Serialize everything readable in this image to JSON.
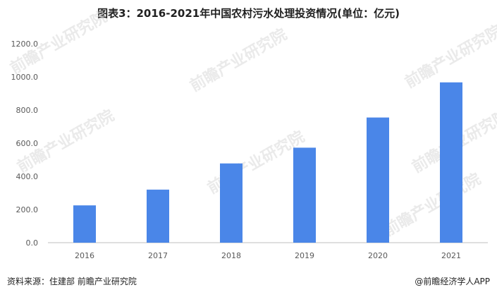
{
  "title": "图表3：2016-2021年中国农村污水处理投资情况(单位：亿元)",
  "source": "资料来源：住建部 前瞻产业研究院",
  "brand": "@前瞻经济学人APP",
  "watermark": "前瞻产业研究院",
  "colors": {
    "bar": "#4a86e8",
    "axis": "#bfbfbf",
    "tick": "#595959"
  },
  "chart_data": {
    "type": "bar",
    "categories": [
      "2016",
      "2017",
      "2018",
      "2019",
      "2020",
      "2021"
    ],
    "values": [
      225,
      320,
      478,
      573,
      755,
      967
    ],
    "ylim": [
      0,
      1200
    ],
    "yticks": [
      0,
      200,
      400,
      600,
      800,
      1000,
      1200
    ],
    "ytick_labels": [
      "0.0",
      "200.0",
      "400.0",
      "600.0",
      "800.0",
      "1000.0",
      "1200.0"
    ],
    "grid": false,
    "legend": "none"
  }
}
